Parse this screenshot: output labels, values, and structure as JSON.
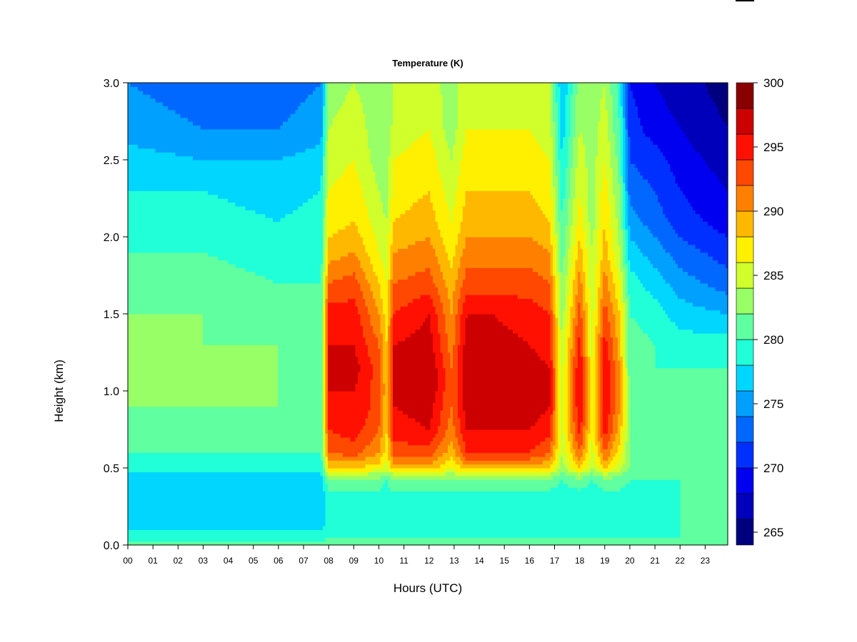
{
  "chart_data": {
    "type": "heatmap",
    "title": "Temperature (K)",
    "xlabel": "Hours (UTC)",
    "ylabel": "Height (km)",
    "xlim": [
      0,
      23.9
    ],
    "ylim": [
      0.0,
      3.0
    ],
    "x_ticks": [
      "00",
      "01",
      "02",
      "03",
      "04",
      "05",
      "06",
      "07",
      "08",
      "09",
      "10",
      "11",
      "12",
      "13",
      "14",
      "15",
      "16",
      "17",
      "18",
      "19",
      "20",
      "21",
      "22",
      "23"
    ],
    "y_ticks": [
      "0.0",
      "0.5",
      "1.0",
      "1.5",
      "2.0",
      "2.5",
      "3.0"
    ],
    "colorbar": {
      "range": [
        264,
        300
      ],
      "step": 2,
      "tick_labels": [
        "265",
        "270",
        "275",
        "280",
        "285",
        "290",
        "295",
        "300"
      ],
      "colors": [
        "#00007f",
        "#0000bb",
        "#0000f0",
        "#0030ff",
        "#0068ff",
        "#00a0ff",
        "#00d6ff",
        "#20ffd8",
        "#60ffa0",
        "#98ff66",
        "#d0ff2c",
        "#fff000",
        "#ffb800",
        "#ff8000",
        "#ff4800",
        "#ff1000",
        "#cc0000",
        "#8a0000"
      ]
    },
    "heights_km": [
      0.0,
      0.05,
      0.15,
      0.3,
      0.42,
      0.47,
      0.5,
      0.6,
      0.75,
      0.9,
      1.0,
      1.15,
      1.3,
      1.5,
      1.7,
      1.9,
      2.1,
      2.3,
      2.5,
      2.7,
      3.0
    ],
    "profiles": [
      {
        "hour": 0.0,
        "temps": [
          281,
          279,
          277,
          277,
          278,
          278,
          279,
          280,
          281,
          282,
          283,
          283,
          283,
          282,
          281,
          280,
          279,
          278,
          277,
          275,
          274
        ]
      },
      {
        "hour": 3.0,
        "temps": [
          281,
          279,
          277,
          276,
          277,
          278,
          279,
          280,
          281,
          282,
          282,
          282,
          282,
          282,
          281,
          280,
          279,
          278,
          276,
          274,
          273
        ]
      },
      {
        "hour": 6.0,
        "temps": [
          281,
          279,
          277,
          276,
          277,
          278,
          279,
          280,
          281,
          282,
          282,
          282,
          282,
          281,
          280,
          279,
          278,
          277,
          276,
          274,
          273
        ]
      },
      {
        "hour": 7.7,
        "temps": [
          281,
          279,
          277,
          276,
          277,
          278,
          279,
          280,
          281,
          281,
          281,
          281,
          281,
          281,
          280,
          279,
          279,
          278,
          277,
          275,
          274
        ]
      },
      {
        "hour": 8.0,
        "temps": [
          281,
          280,
          279,
          279,
          282,
          285,
          288,
          292,
          294,
          295,
          296,
          296,
          296,
          295,
          292,
          289,
          287,
          286,
          285,
          284,
          283
        ]
      },
      {
        "hour": 9.0,
        "temps": [
          281,
          280,
          279,
          279,
          282,
          285,
          288,
          293,
          295,
          296,
          296,
          297,
          296,
          295,
          293,
          290,
          288,
          287,
          286,
          285,
          284
        ]
      },
      {
        "hour": 10.0,
        "temps": [
          281,
          280,
          279,
          279,
          281,
          284,
          287,
          290,
          292,
          293,
          293,
          293,
          292,
          290,
          288,
          286,
          285,
          284,
          283,
          283,
          283
        ]
      },
      {
        "hour": 10.3,
        "temps": [
          281,
          280,
          279,
          279,
          280,
          283,
          285,
          287,
          288,
          288,
          289,
          288,
          288,
          287,
          286,
          285,
          284,
          283,
          283,
          282,
          282
        ]
      },
      {
        "hour": 10.6,
        "temps": [
          281,
          280,
          279,
          279,
          282,
          285,
          289,
          293,
          295,
          296,
          296,
          296,
          296,
          294,
          292,
          290,
          288,
          287,
          286,
          285,
          284
        ]
      },
      {
        "hour": 12.0,
        "temps": [
          281,
          280,
          279,
          279,
          282,
          286,
          289,
          293,
          296,
          297,
          298,
          298,
          297,
          296,
          293,
          291,
          289,
          288,
          287,
          286,
          285
        ]
      },
      {
        "hour": 12.9,
        "temps": [
          281,
          280,
          279,
          279,
          281,
          284,
          286,
          289,
          291,
          292,
          292,
          292,
          291,
          290,
          289,
          287,
          286,
          285,
          284,
          283,
          283
        ]
      },
      {
        "hour": 13.5,
        "temps": [
          281,
          280,
          279,
          279,
          282,
          286,
          289,
          294,
          296,
          297,
          298,
          298,
          297,
          296,
          293,
          291,
          289,
          288,
          287,
          286,
          285
        ]
      },
      {
        "hour": 14.5,
        "temps": [
          281,
          280,
          279,
          279,
          282,
          286,
          289,
          294,
          296,
          297,
          297,
          297,
          297,
          296,
          293,
          291,
          289,
          288,
          287,
          286,
          285
        ]
      },
      {
        "hour": 16.0,
        "temps": [
          281,
          280,
          279,
          279,
          282,
          286,
          289,
          294,
          296,
          297,
          297,
          297,
          296,
          295,
          293,
          291,
          289,
          288,
          287,
          286,
          285
        ]
      },
      {
        "hour": 16.8,
        "temps": [
          281,
          280,
          279,
          279,
          281,
          285,
          288,
          292,
          295,
          296,
          296,
          296,
          295,
          294,
          292,
          290,
          288,
          287,
          286,
          285,
          284
        ]
      },
      {
        "hour": 17.3,
        "temps": [
          281,
          280,
          279,
          279,
          280,
          282,
          283,
          284,
          285,
          285,
          285,
          285,
          284,
          283,
          282,
          281,
          280,
          279,
          278,
          277,
          276
        ]
      },
      {
        "hour": 18.0,
        "temps": [
          281,
          280,
          279,
          279,
          281,
          285,
          288,
          292,
          295,
          296,
          296,
          296,
          295,
          293,
          291,
          289,
          287,
          286,
          285,
          284,
          283
        ]
      },
      {
        "hour": 18.5,
        "temps": [
          281,
          280,
          279,
          279,
          280,
          282,
          284,
          285,
          286,
          286,
          286,
          286,
          285,
          285,
          284,
          284,
          283,
          283,
          283,
          283,
          283
        ]
      },
      {
        "hour": 19.0,
        "temps": [
          281,
          280,
          279,
          279,
          281,
          285,
          288,
          292,
          295,
          296,
          296,
          296,
          295,
          293,
          291,
          289,
          288,
          287,
          286,
          285,
          284
        ]
      },
      {
        "hour": 19.6,
        "temps": [
          281,
          280,
          279,
          279,
          281,
          283,
          285,
          287,
          289,
          290,
          290,
          290,
          289,
          288,
          286,
          284,
          283,
          282,
          281,
          280,
          279
        ]
      },
      {
        "hour": 20.0,
        "temps": [
          281,
          280,
          279,
          279,
          280,
          281,
          282,
          282,
          282,
          282,
          282,
          281,
          281,
          280,
          279,
          277,
          275,
          273,
          272,
          271,
          270
        ]
      },
      {
        "hour": 21.0,
        "temps": [
          281,
          280,
          279,
          279,
          280,
          281,
          281,
          281,
          281,
          281,
          281,
          280,
          280,
          279,
          277,
          275,
          273,
          272,
          271,
          269,
          268
        ]
      },
      {
        "hour": 22.0,
        "temps": [
          281,
          280,
          280,
          280,
          280,
          281,
          281,
          281,
          281,
          281,
          280,
          280,
          279,
          277,
          275,
          273,
          271,
          270,
          269,
          268,
          267
        ]
      },
      {
        "hour": 23.9,
        "temps": [
          281,
          280,
          280,
          280,
          280,
          281,
          281,
          281,
          281,
          280,
          280,
          280,
          279,
          276,
          273,
          271,
          269,
          268,
          267,
          266,
          265
        ]
      }
    ]
  }
}
